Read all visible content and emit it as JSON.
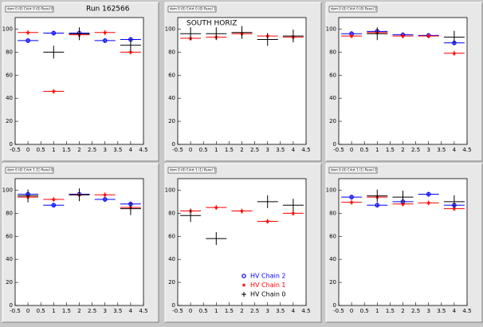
{
  "chart_data": [
    {
      "type": "errorbar",
      "title": "dom 0 (0) Crkrt 0 (0) Panel 0",
      "annotation": "Run 162566",
      "x": [
        0,
        1,
        2,
        3,
        4
      ],
      "xlim": [
        -0.5,
        4.5
      ],
      "xticks": [
        -0.5,
        0,
        0.5,
        1,
        1.5,
        2,
        2.5,
        3,
        3.5,
        4,
        4.5
      ],
      "ylim": [
        0,
        110
      ],
      "yticks": [
        0,
        20,
        40,
        60,
        80,
        100
      ],
      "legend": false,
      "series": [
        {
          "color": "#0000ff",
          "marker": "circle",
          "values": [
            90,
            96.5,
            96.5,
            90,
            91
          ]
        },
        {
          "color": "#ff0000",
          "marker": "star",
          "values": [
            97,
            46,
            95,
            97,
            80
          ]
        },
        {
          "color": "#000000",
          "marker": "cross",
          "values": [
            null,
            80,
            96,
            null,
            86
          ]
        }
      ]
    },
    {
      "type": "errorbar",
      "title": "dom 0 (0) Crkrt 0 (0) Panel 1",
      "annotation": "SOUTH HORIZ",
      "x": [
        0,
        1,
        2,
        3,
        4
      ],
      "xlim": [
        -0.5,
        4.5
      ],
      "xticks": [
        -0.5,
        0,
        0.5,
        1,
        1.5,
        2,
        2.5,
        3,
        3.5,
        4,
        4.5
      ],
      "ylim": [
        0,
        110
      ],
      "yticks": [
        0,
        20,
        40,
        60,
        80,
        100
      ],
      "legend": false,
      "series": [
        {
          "color": "#0000ff",
          "marker": "circle",
          "values": [
            null,
            null,
            null,
            null,
            null
          ]
        },
        {
          "color": "#ff0000",
          "marker": "star",
          "values": [
            92,
            93,
            96,
            94,
            93
          ]
        },
        {
          "color": "#000000",
          "marker": "cross",
          "values": [
            96,
            96,
            97,
            91,
            94
          ]
        }
      ]
    },
    {
      "type": "errorbar",
      "title": "dom 0 (0) Crkrt 0 (0) Panel 2",
      "x": [
        0,
        1,
        2,
        3,
        4
      ],
      "xlim": [
        -0.5,
        4.5
      ],
      "xticks": [
        -0.5,
        0,
        0.5,
        1,
        1.5,
        2,
        2.5,
        3,
        3.5,
        4,
        4.5
      ],
      "ylim": [
        0,
        110
      ],
      "yticks": [
        0,
        20,
        40,
        60,
        80,
        100
      ],
      "legend": false,
      "series": [
        {
          "color": "#0000ff",
          "marker": "circle",
          "values": [
            96,
            98,
            95,
            94.5,
            88
          ]
        },
        {
          "color": "#ff0000",
          "marker": "star",
          "values": [
            94,
            97,
            94,
            94,
            79
          ]
        },
        {
          "color": "#000000",
          "marker": "cross",
          "values": [
            null,
            96,
            null,
            null,
            93
          ]
        }
      ]
    },
    {
      "type": "errorbar",
      "title": "dom 0 (0) Crkrt 1 (1) Panel 0",
      "x": [
        0,
        1,
        2,
        3,
        4
      ],
      "xlim": [
        -0.5,
        4.5
      ],
      "xticks": [
        -0.5,
        0,
        0.5,
        1,
        1.5,
        2,
        2.5,
        3,
        3.5,
        4,
        4.5
      ],
      "ylim": [
        0,
        110
      ],
      "yticks": [
        0,
        20,
        40,
        60,
        80,
        100
      ],
      "legend": false,
      "series": [
        {
          "color": "#0000ff",
          "marker": "circle",
          "values": [
            96.5,
            87,
            96.5,
            92,
            88
          ]
        },
        {
          "color": "#ff0000",
          "marker": "star",
          "values": [
            94,
            92,
            96,
            96,
            85
          ]
        },
        {
          "color": "#000000",
          "marker": "cross",
          "values": [
            95,
            null,
            96,
            null,
            84
          ]
        }
      ]
    },
    {
      "type": "errorbar",
      "title": "dom 0 (0) Crkrt 1 (1) Panel 1",
      "x": [
        0,
        1,
        2,
        3,
        4
      ],
      "xlim": [
        -0.5,
        4.5
      ],
      "xticks": [
        -0.5,
        0,
        0.5,
        1,
        1.5,
        2,
        2.5,
        3,
        3.5,
        4,
        4.5
      ],
      "ylim": [
        0,
        110
      ],
      "yticks": [
        0,
        20,
        40,
        60,
        80,
        100
      ],
      "legend": true,
      "series": [
        {
          "name": "HV Chain 2",
          "color": "#0000ff",
          "marker": "circle",
          "values": [
            null,
            null,
            null,
            null,
            null
          ]
        },
        {
          "name": "HV Chain 1",
          "color": "#ff0000",
          "marker": "star",
          "values": [
            82,
            85,
            82,
            73,
            80
          ]
        },
        {
          "name": "HV Chain 0",
          "color": "#000000",
          "marker": "cross",
          "values": [
            78,
            58,
            null,
            90,
            87
          ]
        }
      ]
    },
    {
      "type": "errorbar",
      "title": "dom 0 (0) Crkrt 1 (1) Panel 2",
      "x": [
        0,
        1,
        2,
        3,
        4
      ],
      "xlim": [
        -0.5,
        4.5
      ],
      "xticks": [
        -0.5,
        0,
        0.5,
        1,
        1.5,
        2,
        2.5,
        3,
        3.5,
        4,
        4.5
      ],
      "ylim": [
        0,
        110
      ],
      "yticks": [
        0,
        20,
        40,
        60,
        80,
        100
      ],
      "legend": false,
      "series": [
        {
          "color": "#0000ff",
          "marker": "circle",
          "values": [
            94,
            87,
            90,
            96.5,
            87
          ]
        },
        {
          "color": "#ff0000",
          "marker": "star",
          "values": [
            89.5,
            94,
            88,
            89,
            84
          ]
        },
        {
          "color": "#000000",
          "marker": "cross",
          "values": [
            null,
            95,
            94,
            null,
            90
          ]
        }
      ]
    }
  ]
}
